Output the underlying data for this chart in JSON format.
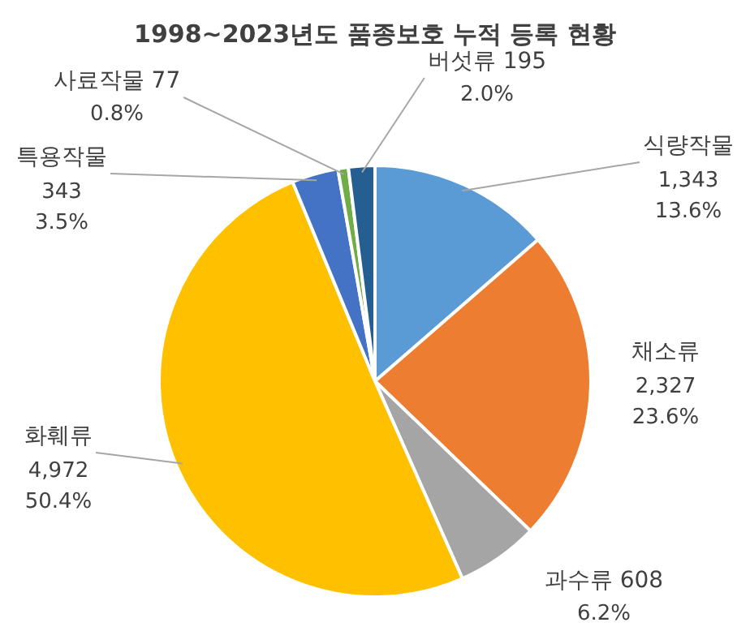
{
  "chart_data": {
    "type": "pie",
    "title": "1998~2023년도 품종보호 누적 등록 현황",
    "categories": [
      "식량작물",
      "채소류",
      "과수류",
      "화훼류",
      "특용작물",
      "사료작물",
      "버섯류"
    ],
    "values": [
      1343,
      2327,
      608,
      4972,
      343,
      77,
      195
    ],
    "value_labels": [
      "1,343",
      "2,327",
      "608",
      "4,972",
      "343",
      "77",
      "195"
    ],
    "annotations": [
      "13.6%",
      "23.6%",
      "6.2%",
      "50.4%",
      "3.5%",
      "0.8%",
      "2.0%"
    ],
    "colors": [
      "#5b9bd5",
      "#ed7d31",
      "#a5a5a5",
      "#ffc000",
      "#4472c4",
      "#70ad47",
      "#255e91"
    ]
  }
}
